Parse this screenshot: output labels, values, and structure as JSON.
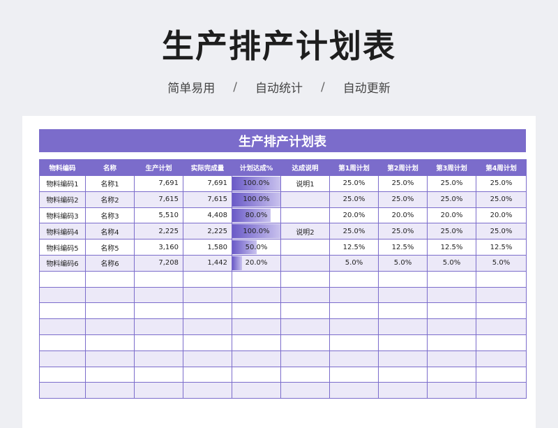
{
  "page": {
    "title": "生产排产计划表",
    "subtitle": [
      "简单易用",
      "自动统计",
      "自动更新"
    ],
    "separator": "/"
  },
  "sheet": {
    "banner_title": "生产排产计划表",
    "headers": [
      "物料编码",
      "名称",
      "生产计划",
      "实际完成量",
      "计划达成%",
      "达成说明",
      "第1周计划",
      "第2周计划",
      "第3周计划",
      "第4周计划"
    ],
    "rows": [
      {
        "code": "物料编码1",
        "name": "名称1",
        "plan": "7,691",
        "actual": "7,691",
        "rate": "100.0%",
        "rate_value": 1.0,
        "note": "说明1",
        "w1": "25.0%",
        "w2": "25.0%",
        "w3": "25.0%",
        "w4": "25.0%"
      },
      {
        "code": "物料编码2",
        "name": "名称2",
        "plan": "7,615",
        "actual": "7,615",
        "rate": "100.0%",
        "rate_value": 1.0,
        "note": "",
        "w1": "25.0%",
        "w2": "25.0%",
        "w3": "25.0%",
        "w4": "25.0%"
      },
      {
        "code": "物料编码3",
        "name": "名称3",
        "plan": "5,510",
        "actual": "4,408",
        "rate": "80.0%",
        "rate_value": 0.8,
        "note": "",
        "w1": "20.0%",
        "w2": "20.0%",
        "w3": "20.0%",
        "w4": "20.0%"
      },
      {
        "code": "物料编码4",
        "name": "名称4",
        "plan": "2,225",
        "actual": "2,225",
        "rate": "100.0%",
        "rate_value": 1.0,
        "note": "说明2",
        "w1": "25.0%",
        "w2": "25.0%",
        "w3": "25.0%",
        "w4": "25.0%"
      },
      {
        "code": "物料编码5",
        "name": "名称5",
        "plan": "3,160",
        "actual": "1,580",
        "rate": "50.0%",
        "rate_value": 0.5,
        "note": "",
        "w1": "12.5%",
        "w2": "12.5%",
        "w3": "12.5%",
        "w4": "12.5%"
      },
      {
        "code": "物料编码6",
        "name": "名称6",
        "plan": "7,208",
        "actual": "1,442",
        "rate": "20.0%",
        "rate_value": 0.2,
        "note": "",
        "w1": "5.0%",
        "w2": "5.0%",
        "w3": "5.0%",
        "w4": "5.0%"
      }
    ],
    "empty_rows": 8
  },
  "colors": {
    "accent": "#7b6ccb",
    "row_alt": "#ece9f8",
    "background": "#eeeff3"
  }
}
